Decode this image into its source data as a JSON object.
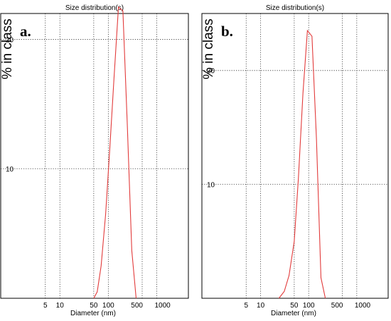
{
  "chart_data": [
    {
      "type": "line",
      "panel_label": "a.",
      "title": "Size distribution(s)",
      "xlabel": "Diameter (nm)",
      "ylabel": "% in class",
      "x_scale": "log",
      "xlim": [
        0.6,
        4500
      ],
      "ylim": [
        0,
        22
      ],
      "x_ticks": [
        5,
        10,
        50,
        100,
        500,
        1000
      ],
      "x_tick_labels": [
        "5",
        "10",
        "50",
        "100",
        "500",
        "1000"
      ],
      "y_ticks": [
        10,
        20
      ],
      "y_tick_labels": [
        "10",
        "20"
      ],
      "grid": true,
      "color": "#e23b3b",
      "series": [
        {
          "x": [
            50,
            59,
            71,
            88,
            107,
            131,
            162,
            200,
            246,
            305,
            375,
            460,
            570,
            700,
            860
          ],
          "y": [
            0,
            0.5,
            2.5,
            6.5,
            11.5,
            17.0,
            22.5,
            22.2,
            13.5,
            3.7,
            0.0,
            null,
            null,
            null,
            null
          ]
        }
      ]
    },
    {
      "type": "line",
      "panel_label": "b.",
      "title": "Size distribution(s)",
      "xlabel": "Diameter (nm)",
      "ylabel": "% in class",
      "x_scale": "log",
      "xlim": [
        0.6,
        4500
      ],
      "ylim": [
        0,
        25
      ],
      "x_ticks": [
        5,
        10,
        50,
        100,
        500,
        1000
      ],
      "x_tick_labels": [
        "5",
        "10",
        "50",
        "100",
        "500",
        "1000"
      ],
      "y_ticks": [
        10,
        20
      ],
      "y_tick_labels": [
        "10",
        "20"
      ],
      "grid": true,
      "color": "#e23b3b",
      "series": [
        {
          "x": [
            24,
            31,
            39,
            50,
            61,
            76,
            94,
            117,
            145,
            180,
            222,
            274,
            340,
            420,
            520,
            640
          ],
          "y": [
            0,
            0.6,
            2.0,
            5.0,
            10.5,
            18.0,
            23.5,
            23.0,
            14.0,
            1.8,
            0.0,
            null,
            null,
            null,
            null,
            null
          ]
        }
      ]
    }
  ]
}
